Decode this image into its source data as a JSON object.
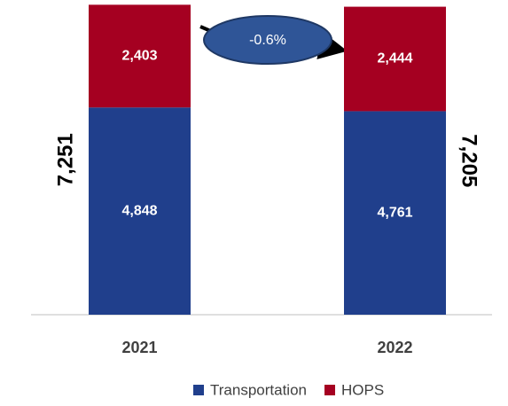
{
  "chart_data": {
    "type": "stacked_bar",
    "categories": [
      "2021",
      "2022"
    ],
    "series": [
      {
        "name": "Transportation",
        "color": "#203f8c",
        "values": [
          4848,
          4761
        ],
        "value_labels": [
          "4,848",
          "4,761"
        ]
      },
      {
        "name": "HOPS",
        "color": "#a50021",
        "values": [
          2403,
          2444
        ],
        "value_labels": [
          "2,403",
          "2,444"
        ]
      }
    ],
    "totals": [
      7251,
      7205
    ],
    "total_labels": [
      "7,251",
      "7,205"
    ],
    "annotation": "-0.6%",
    "ylim": [
      0,
      7300
    ]
  }
}
